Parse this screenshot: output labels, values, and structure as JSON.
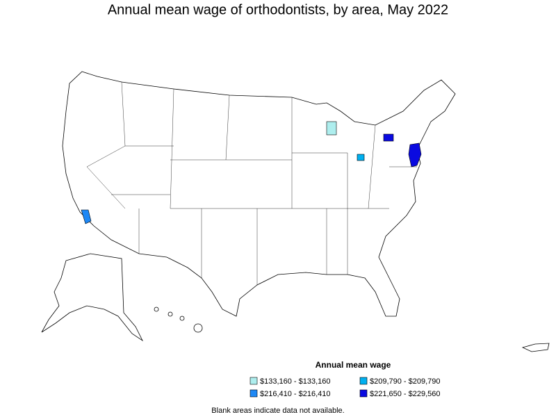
{
  "title": "Annual mean wage of orthodontists, by area, May 2022",
  "legend": {
    "title": "Annual mean wage",
    "items": [
      {
        "label": "$133,160 - $133,160",
        "color": "#aeeeee"
      },
      {
        "label": "$209,790 - $209,790",
        "color": "#00b0f0"
      },
      {
        "label": "$216,410 - $216,410",
        "color": "#1e88f5"
      },
      {
        "label": "$221,650 - $229,560",
        "color": "#0a0ae0"
      }
    ]
  },
  "note": "Blank areas indicate data not available."
}
